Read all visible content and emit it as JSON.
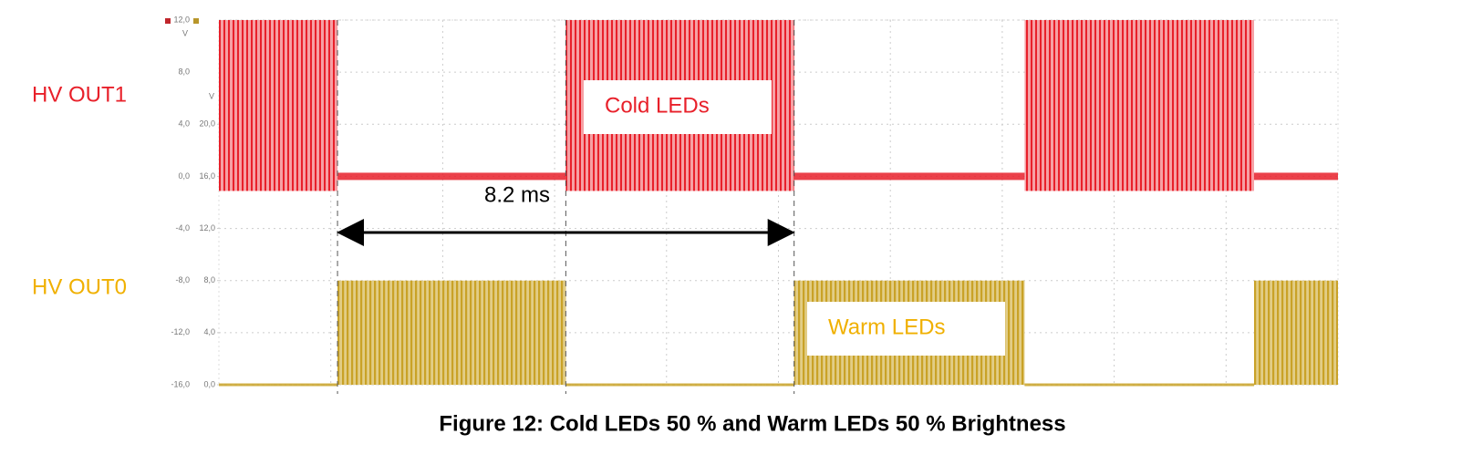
{
  "chart_data": {
    "type": "step",
    "title": "Figure 12: Cold LEDs 50 % and Warm LEDs 50 % Brightness",
    "xlim": [
      0,
      10
    ],
    "ylim": [
      -16,
      12
    ],
    "y2lim": [
      0,
      28
    ],
    "yunit": "V",
    "y2unit": "V",
    "yticks": [
      {
        "value": 12,
        "label": "12,0"
      },
      {
        "value": 8,
        "label": "8,0"
      },
      {
        "value": 4,
        "label": "4,0"
      },
      {
        "value": 0,
        "label": "0,0"
      },
      {
        "value": -4,
        "label": "-4,0"
      },
      {
        "value": -8,
        "label": "-8,0"
      },
      {
        "value": -12,
        "label": "-12,0"
      },
      {
        "value": -16,
        "label": "-16,0"
      }
    ],
    "y2ticks": [
      {
        "value": 20,
        "label": "20,0"
      },
      {
        "value": 16,
        "label": "16,0"
      },
      {
        "value": 12,
        "label": "12,0"
      },
      {
        "value": 8,
        "label": "8,0"
      },
      {
        "value": 4,
        "label": "4,0"
      },
      {
        "value": 0,
        "label": "0,0"
      }
    ],
    "grid": true,
    "series": [
      {
        "name": "HV OUT1",
        "color": "#e8202a",
        "axis": "y",
        "x": [
          0,
          1.06,
          3.1,
          5.14,
          7.2,
          9.25
        ],
        "values": [
          12,
          0,
          12,
          0,
          12,
          0
        ]
      },
      {
        "name": "HV OUT0",
        "color": "#c9a227",
        "axis": "y2",
        "x": [
          0,
          1.06,
          3.1,
          5.14,
          7.2,
          9.25
        ],
        "values": [
          0,
          8,
          0,
          8,
          0,
          8
        ]
      }
    ],
    "annotations": [
      "Cold LEDs",
      "Warm LEDs",
      "8.2 ms"
    ]
  }
}
